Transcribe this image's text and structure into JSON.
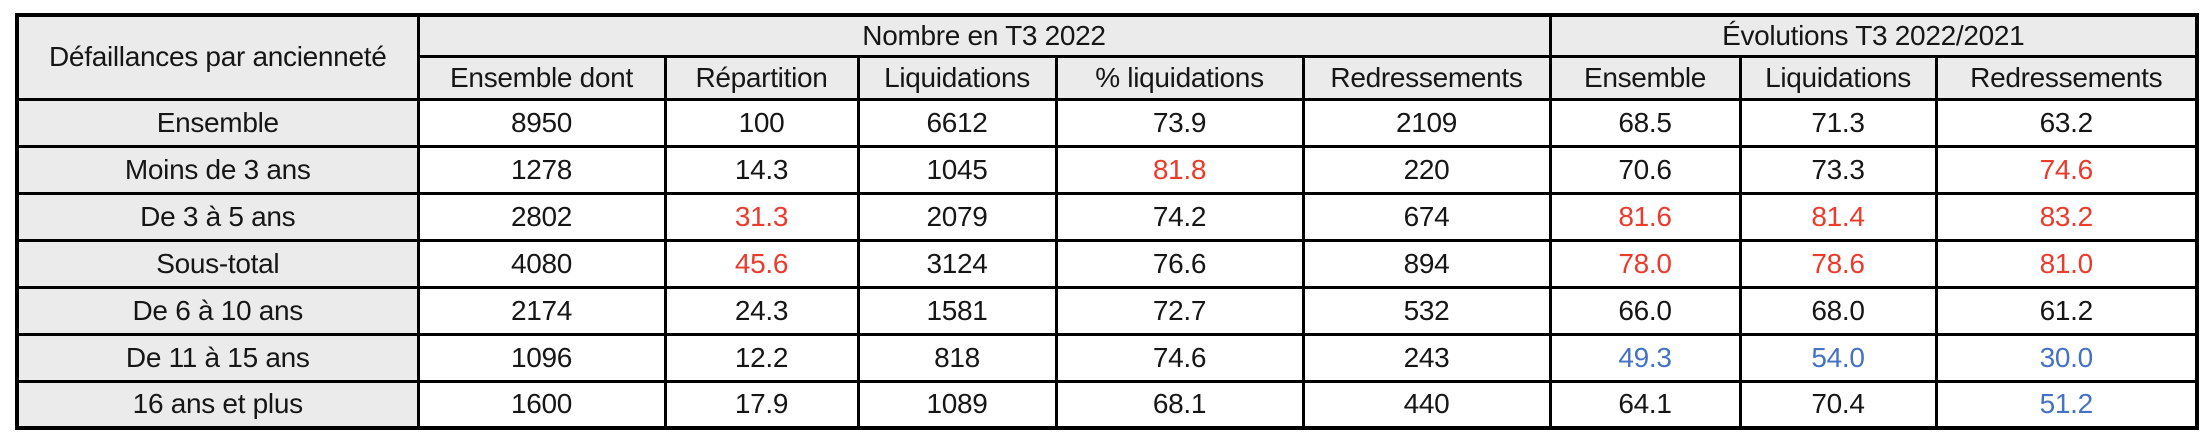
{
  "chart_data": {
    "type": "table",
    "corner_header": "Défaillances par ancienneté",
    "column_groups": [
      {
        "label": "Nombre en T3 2022",
        "colspan": 5
      },
      {
        "label": "Évolutions T3 2022/2021",
        "colspan": 3
      }
    ],
    "columns": [
      "Ensemble dont",
      "Répartition",
      "Liquidations",
      "% liquidations",
      "Redressements",
      "Ensemble",
      "Liquidations",
      "Redressements"
    ],
    "rows": [
      {
        "label": "Ensemble",
        "values": [
          "8950",
          "100",
          "6612",
          "73.9",
          "2109",
          "68.5",
          "71.3",
          "63.2"
        ],
        "colors": [
          "black",
          "black",
          "black",
          "black",
          "black",
          "black",
          "black",
          "black"
        ]
      },
      {
        "label": "Moins de 3 ans",
        "values": [
          "1278",
          "14.3",
          "1045",
          "81.8",
          "220",
          "70.6",
          "73.3",
          "74.6"
        ],
        "colors": [
          "black",
          "black",
          "black",
          "red",
          "black",
          "black",
          "black",
          "red"
        ]
      },
      {
        "label": "De 3 à 5 ans",
        "values": [
          "2802",
          "31.3",
          "2079",
          "74.2",
          "674",
          "81.6",
          "81.4",
          "83.2"
        ],
        "colors": [
          "black",
          "red",
          "black",
          "black",
          "black",
          "red",
          "red",
          "red"
        ]
      },
      {
        "label": "Sous-total",
        "values": [
          "4080",
          "45.6",
          "3124",
          "76.6",
          "894",
          "78.0",
          "78.6",
          "81.0"
        ],
        "colors": [
          "black",
          "red",
          "black",
          "black",
          "black",
          "red",
          "red",
          "red"
        ]
      },
      {
        "label": "De 6 à 10 ans",
        "values": [
          "2174",
          "24.3",
          "1581",
          "72.7",
          "532",
          "66.0",
          "68.0",
          "61.2"
        ],
        "colors": [
          "black",
          "black",
          "black",
          "black",
          "black",
          "black",
          "black",
          "black"
        ]
      },
      {
        "label": "De 11 à 15 ans",
        "values": [
          "1096",
          "12.2",
          "818",
          "74.6",
          "243",
          "49.3",
          "54.0",
          "30.0"
        ],
        "colors": [
          "black",
          "black",
          "black",
          "black",
          "black",
          "blue",
          "blue",
          "blue"
        ]
      },
      {
        "label": "16 ans et plus",
        "values": [
          "1600",
          "17.9",
          "1089",
          "68.1",
          "440",
          "64.1",
          "70.4",
          "51.2"
        ],
        "colors": [
          "black",
          "black",
          "black",
          "black",
          "black",
          "black",
          "black",
          "blue"
        ]
      }
    ],
    "colors": {
      "black": "#161616",
      "red": "#EA3B2C",
      "blue": "#4472C4",
      "header_bg": "#EBEBEB",
      "border": "#000000"
    }
  }
}
